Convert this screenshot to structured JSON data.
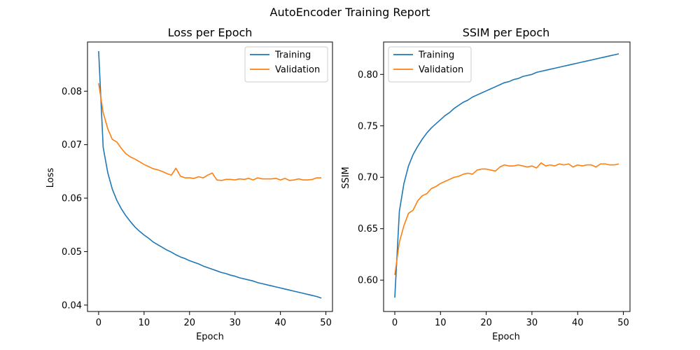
{
  "figure": {
    "suptitle": "AutoEncoder Training Report"
  },
  "chart_data": [
    {
      "type": "line",
      "title": "Loss per Epoch",
      "xlabel": "Epoch",
      "ylabel": "Loss",
      "xlim": [
        -2.45,
        51.45
      ],
      "ylim": [
        0.0388,
        0.0892
      ],
      "xticks": [
        0,
        10,
        20,
        30,
        40,
        50
      ],
      "yticks": [
        0.04,
        0.05,
        0.06,
        0.07,
        0.08
      ],
      "ytick_decimals": 2,
      "legend_position": "upper right",
      "series": [
        {
          "name": "Training",
          "color": "#1f77b4",
          "x": [
            0,
            1,
            2,
            3,
            4,
            5,
            6,
            7,
            8,
            9,
            10,
            11,
            12,
            13,
            14,
            15,
            16,
            17,
            18,
            19,
            20,
            21,
            22,
            23,
            24,
            25,
            26,
            27,
            28,
            29,
            30,
            31,
            32,
            33,
            34,
            35,
            36,
            37,
            38,
            39,
            40,
            41,
            42,
            43,
            44,
            45,
            46,
            47,
            48,
            49
          ],
          "values": [
            0.0875,
            0.0695,
            0.0648,
            0.0617,
            0.0596,
            0.058,
            0.0567,
            0.0556,
            0.0546,
            0.0538,
            0.0531,
            0.0525,
            0.0518,
            0.0513,
            0.0508,
            0.0503,
            0.0499,
            0.0494,
            0.049,
            0.0487,
            0.0483,
            0.048,
            0.0477,
            0.0473,
            0.047,
            0.0467,
            0.0464,
            0.0461,
            0.0459,
            0.0456,
            0.0454,
            0.0451,
            0.0449,
            0.0447,
            0.0445,
            0.0442,
            0.044,
            0.0438,
            0.0436,
            0.0434,
            0.0432,
            0.043,
            0.0428,
            0.0426,
            0.0424,
            0.0422,
            0.042,
            0.0418,
            0.0416,
            0.0413
          ]
        },
        {
          "name": "Validation",
          "color": "#ff7f0e",
          "x": [
            0,
            1,
            2,
            3,
            4,
            5,
            6,
            7,
            8,
            9,
            10,
            11,
            12,
            13,
            14,
            15,
            16,
            17,
            18,
            19,
            20,
            21,
            22,
            23,
            24,
            25,
            26,
            27,
            28,
            29,
            30,
            31,
            32,
            33,
            34,
            35,
            36,
            37,
            38,
            39,
            40,
            41,
            42,
            43,
            44,
            45,
            46,
            47,
            48,
            49
          ],
          "values": [
            0.0815,
            0.076,
            0.073,
            0.071,
            0.0705,
            0.0693,
            0.0683,
            0.0677,
            0.0673,
            0.0668,
            0.0663,
            0.0659,
            0.0655,
            0.0653,
            0.065,
            0.0646,
            0.0643,
            0.0656,
            0.0641,
            0.0638,
            0.0638,
            0.0637,
            0.064,
            0.0638,
            0.0643,
            0.0647,
            0.0634,
            0.0633,
            0.0635,
            0.0635,
            0.0634,
            0.0636,
            0.0635,
            0.0637,
            0.0634,
            0.0638,
            0.0636,
            0.0636,
            0.0636,
            0.0637,
            0.0634,
            0.0637,
            0.0633,
            0.0634,
            0.0636,
            0.0634,
            0.0634,
            0.0635,
            0.0638,
            0.0638
          ]
        }
      ]
    },
    {
      "type": "line",
      "title": "SSIM per Epoch",
      "xlabel": "Epoch",
      "ylabel": "SSIM",
      "xlim": [
        -2.45,
        51.45
      ],
      "ylim": [
        0.5695,
        0.8315
      ],
      "xticks": [
        0,
        10,
        20,
        30,
        40,
        50
      ],
      "yticks": [
        0.6,
        0.65,
        0.7,
        0.75,
        0.8
      ],
      "ytick_decimals": 2,
      "legend_position": "upper left",
      "series": [
        {
          "name": "Training",
          "color": "#1f77b4",
          "x": [
            0,
            1,
            2,
            3,
            4,
            5,
            6,
            7,
            8,
            9,
            10,
            11,
            12,
            13,
            14,
            15,
            16,
            17,
            18,
            19,
            20,
            21,
            22,
            23,
            24,
            25,
            26,
            27,
            28,
            29,
            30,
            31,
            32,
            33,
            34,
            35,
            36,
            37,
            38,
            39,
            40,
            41,
            42,
            43,
            44,
            45,
            46,
            47,
            48,
            49
          ],
          "values": [
            0.583,
            0.667,
            0.694,
            0.711,
            0.722,
            0.73,
            0.737,
            0.743,
            0.748,
            0.752,
            0.756,
            0.76,
            0.763,
            0.767,
            0.77,
            0.773,
            0.775,
            0.778,
            0.78,
            0.782,
            0.784,
            0.786,
            0.788,
            0.79,
            0.792,
            0.793,
            0.795,
            0.796,
            0.798,
            0.799,
            0.8,
            0.802,
            0.803,
            0.804,
            0.805,
            0.806,
            0.807,
            0.808,
            0.809,
            0.81,
            0.811,
            0.812,
            0.813,
            0.814,
            0.815,
            0.816,
            0.817,
            0.818,
            0.819,
            0.82
          ]
        },
        {
          "name": "Validation",
          "color": "#ff7f0e",
          "x": [
            0,
            1,
            2,
            3,
            4,
            5,
            6,
            7,
            8,
            9,
            10,
            11,
            12,
            13,
            14,
            15,
            16,
            17,
            18,
            19,
            20,
            21,
            22,
            23,
            24,
            25,
            26,
            27,
            28,
            29,
            30,
            31,
            32,
            33,
            34,
            35,
            36,
            37,
            38,
            39,
            40,
            41,
            42,
            43,
            44,
            45,
            46,
            47,
            48,
            49
          ],
          "values": [
            0.605,
            0.637,
            0.653,
            0.665,
            0.668,
            0.677,
            0.682,
            0.684,
            0.689,
            0.691,
            0.694,
            0.696,
            0.698,
            0.7,
            0.701,
            0.703,
            0.704,
            0.703,
            0.707,
            0.708,
            0.708,
            0.707,
            0.706,
            0.71,
            0.712,
            0.711,
            0.711,
            0.712,
            0.711,
            0.71,
            0.711,
            0.709,
            0.714,
            0.711,
            0.712,
            0.711,
            0.713,
            0.712,
            0.713,
            0.71,
            0.712,
            0.711,
            0.712,
            0.712,
            0.71,
            0.713,
            0.713,
            0.712,
            0.712,
            0.713
          ]
        }
      ]
    }
  ]
}
